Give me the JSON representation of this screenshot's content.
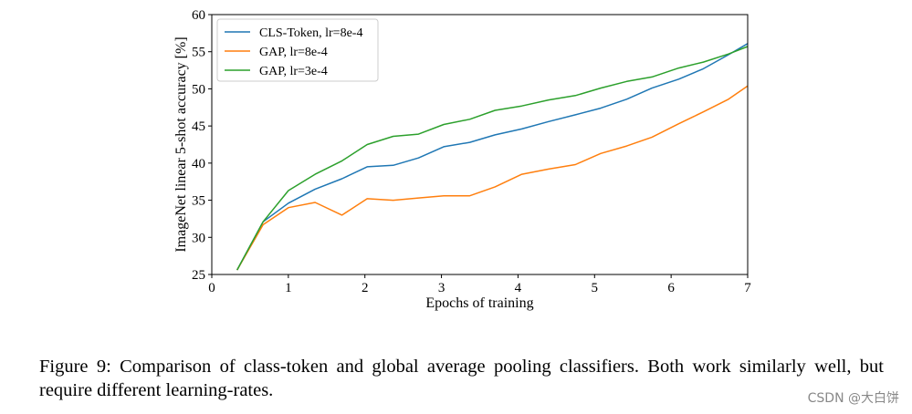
{
  "chart_data": {
    "type": "line",
    "xlabel": "Epochs of training",
    "ylabel": "ImageNet linear 5-shot accuracy [%]",
    "xlim": [
      0,
      7
    ],
    "ylim": [
      25,
      60
    ],
    "xticks": [
      0,
      1,
      2,
      3,
      4,
      5,
      6,
      7
    ],
    "yticks": [
      25,
      30,
      35,
      40,
      45,
      50,
      55,
      60
    ],
    "grid": false,
    "legend_position": "upper-left",
    "series": [
      {
        "name": "CLS-Token, lr=8e-4",
        "color": "#1f77b4",
        "x": [
          0.33,
          0.67,
          1.0,
          1.35,
          1.7,
          2.03,
          2.37,
          2.7,
          3.03,
          3.37,
          3.7,
          4.05,
          4.4,
          4.75,
          5.08,
          5.42,
          5.75,
          6.1,
          6.42,
          6.75,
          7.0
        ],
        "y": [
          25.6,
          32.1,
          34.6,
          36.5,
          37.9,
          39.5,
          39.7,
          40.7,
          42.2,
          42.8,
          43.8,
          44.6,
          45.6,
          46.5,
          47.4,
          48.6,
          50.1,
          51.3,
          52.7,
          54.6,
          56.1
        ]
      },
      {
        "name": "GAP, lr=8e-4",
        "color": "#ff7f0e",
        "x": [
          0.33,
          0.67,
          1.0,
          1.35,
          1.7,
          2.03,
          2.37,
          2.7,
          3.03,
          3.37,
          3.7,
          4.05,
          4.4,
          4.75,
          5.08,
          5.42,
          5.75,
          6.1,
          6.42,
          6.75,
          7.0
        ],
        "y": [
          25.6,
          31.7,
          34.0,
          34.7,
          33.0,
          35.2,
          35.0,
          35.3,
          35.6,
          35.6,
          36.8,
          38.5,
          39.2,
          39.8,
          41.3,
          42.3,
          43.5,
          45.3,
          46.9,
          48.6,
          50.4
        ]
      },
      {
        "name": "GAP, lr=3e-4",
        "color": "#2ca02c",
        "x": [
          0.33,
          0.67,
          1.0,
          1.35,
          1.7,
          2.03,
          2.37,
          2.7,
          3.03,
          3.37,
          3.7,
          4.05,
          4.4,
          4.75,
          5.08,
          5.42,
          5.75,
          6.1,
          6.42,
          6.75,
          7.0
        ],
        "y": [
          25.6,
          32.1,
          36.3,
          38.5,
          40.3,
          42.5,
          43.6,
          43.9,
          45.2,
          45.9,
          47.1,
          47.7,
          48.5,
          49.1,
          50.1,
          51.0,
          51.6,
          52.8,
          53.6,
          54.7,
          55.7
        ]
      }
    ]
  },
  "caption": "Figure 9: Comparison of class-token and global average pooling classifiers. Both work similarly well, but require different learning-rates.",
  "watermark": "CSDN @大白饼"
}
